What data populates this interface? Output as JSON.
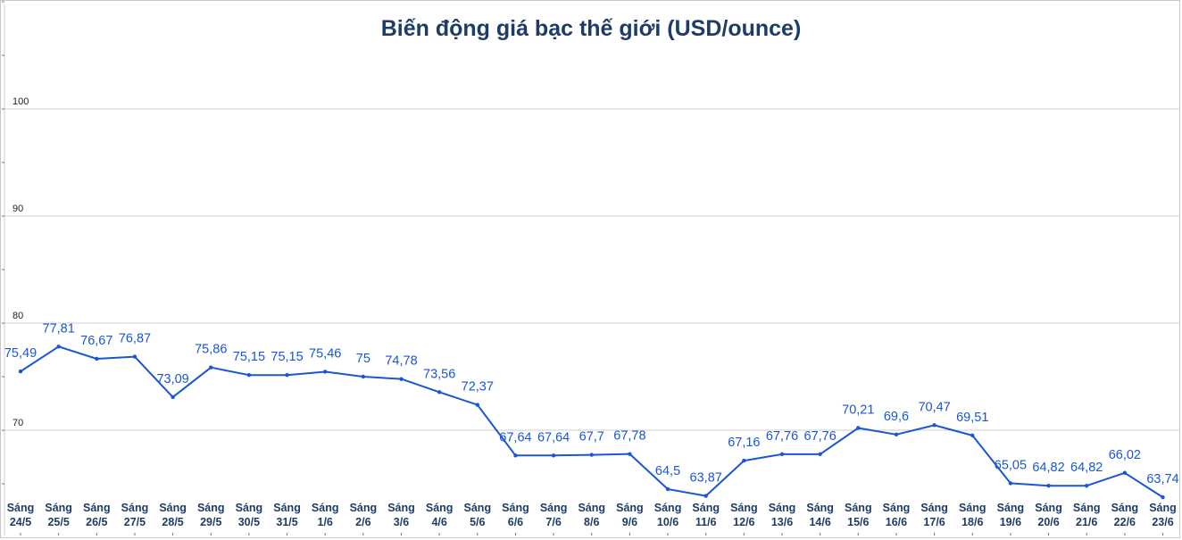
{
  "chart_data": {
    "type": "line",
    "title": "Biến động giá bạc thế giới (USD/ounce)",
    "xlabel": "",
    "ylabel": "",
    "ylim": [
      60,
      110
    ],
    "yticks": [
      70,
      80,
      90,
      100
    ],
    "grid": true,
    "series_color": "#1a56d6",
    "categories": [
      [
        "Sáng",
        "24/5"
      ],
      [
        "Sáng",
        "25/5"
      ],
      [
        "Sáng",
        "26/5"
      ],
      [
        "Sáng",
        "27/5"
      ],
      [
        "Sáng",
        "28/5"
      ],
      [
        "Sáng",
        "29/5"
      ],
      [
        "Sáng",
        "30/5"
      ],
      [
        "Sáng",
        "31/5"
      ],
      [
        "Sáng",
        "1/6"
      ],
      [
        "Sáng",
        "2/6"
      ],
      [
        "Sáng",
        "3/6"
      ],
      [
        "Sáng",
        "4/6"
      ],
      [
        "Sáng",
        "5/6"
      ],
      [
        "Sáng",
        "6/6"
      ],
      [
        "Sáng",
        "7/6"
      ],
      [
        "Sáng",
        "8/6"
      ],
      [
        "Sáng",
        "9/6"
      ],
      [
        "Sáng",
        "10/6"
      ],
      [
        "Sáng",
        "11/6"
      ],
      [
        "Sáng",
        "12/6"
      ],
      [
        "Sáng",
        "13/6"
      ],
      [
        "Sáng",
        "14/6"
      ],
      [
        "Sáng",
        "15/6"
      ],
      [
        "Sáng",
        "16/6"
      ],
      [
        "Sáng",
        "17/6"
      ],
      [
        "Sáng",
        "18/6"
      ],
      [
        "Sáng",
        "19/6"
      ],
      [
        "Sáng",
        "20/6"
      ],
      [
        "Sáng",
        "21/6"
      ],
      [
        "Sáng",
        "22/6"
      ],
      [
        "Sáng",
        "23/6"
      ]
    ],
    "values": [
      75.49,
      77.81,
      76.67,
      76.87,
      73.09,
      75.86,
      75.15,
      75.15,
      75.46,
      75,
      74.78,
      73.56,
      72.37,
      67.64,
      67.64,
      67.7,
      67.78,
      64.5,
      63.87,
      67.16,
      67.76,
      67.76,
      70.21,
      69.6,
      70.47,
      69.51,
      65.05,
      64.82,
      64.82,
      66.02,
      63.74
    ],
    "data_labels": [
      "75,49",
      "77,81",
      "76,67",
      "76,87",
      "73,09",
      "75,86",
      "75,15",
      "75,15",
      "75,46",
      "75",
      "74,78",
      "73,56",
      "72,37",
      "67,64",
      "67,64",
      "67,7",
      "67,78",
      "64,5",
      "63,87",
      "67,16",
      "67,76",
      "67,76",
      "70,21",
      "69,6",
      "70,47",
      "69,51",
      "65,05",
      "64,82",
      "64,82",
      "66,02",
      "63,74"
    ]
  }
}
